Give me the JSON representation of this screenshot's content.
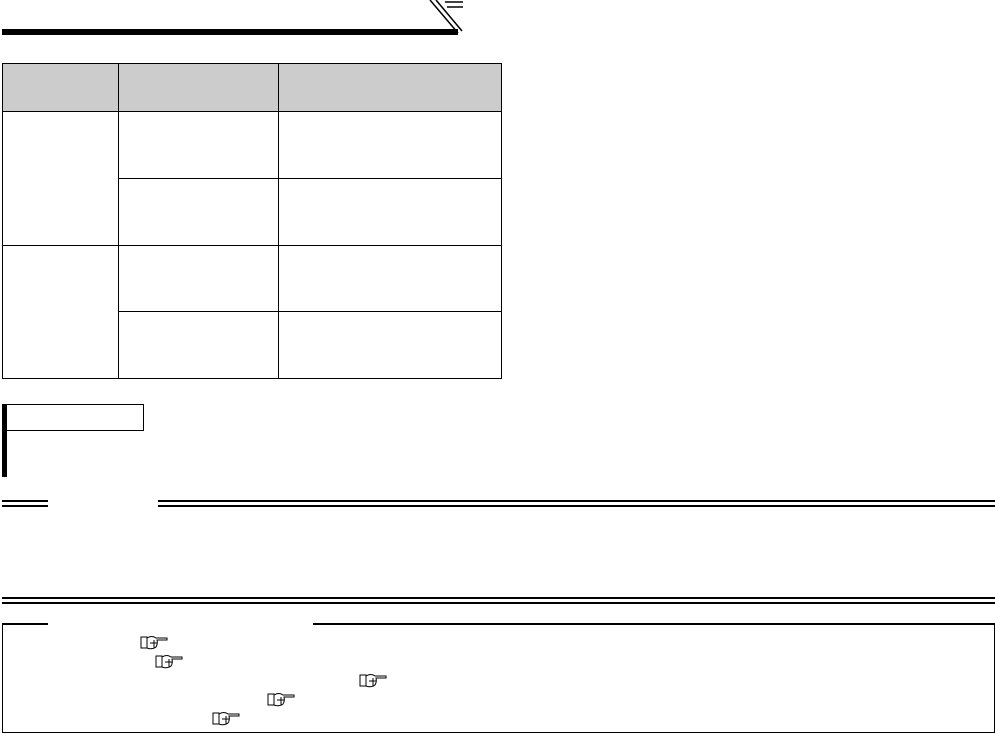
{
  "page": {
    "header_rule": {
      "icon": "header-slash-mark"
    },
    "table": {
      "header_fill": "#cccccc",
      "columns": [
        "",
        "",
        ""
      ],
      "rows": [
        {
          "group": "",
          "cells": [
            "",
            ""
          ]
        },
        {
          "group": "",
          "cells": [
            "",
            ""
          ]
        },
        {
          "group": "",
          "cells": [
            "",
            ""
          ]
        },
        {
          "group": "",
          "cells": [
            "",
            ""
          ]
        }
      ]
    },
    "note_box": {
      "label": ""
    },
    "reference_box": {
      "icons": [
        "pointing-hand-icon",
        "pointing-hand-icon",
        "pointing-hand-icon",
        "pointing-hand-icon",
        "pointing-hand-icon"
      ]
    }
  }
}
